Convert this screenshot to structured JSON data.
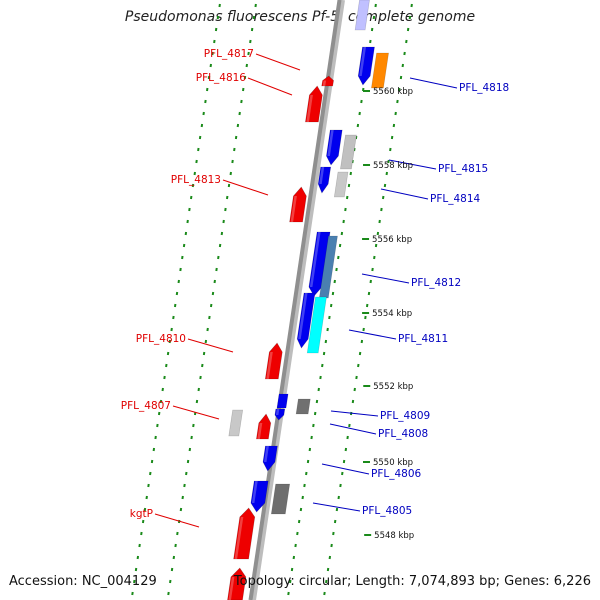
{
  "title": "Pseudomonas fluorescens Pf-5, complete genome",
  "footer": {
    "accession": "Accession: NC_004129",
    "summary": "Topology: circular; Length: 7,074,893 bp; Genes: 6,226"
  },
  "colors": {
    "backbone": "#8f8f8f",
    "ticks": "#1a8a1a",
    "forward_label": "#e00000",
    "reverse_label": "#0000c0"
  },
  "scale_labels": [
    "5560 kbp",
    "5558 kbp",
    "5556 kbp",
    "5554 kbp",
    "5552 kbp",
    "5550 kbp",
    "5548 kbp"
  ],
  "forward_genes": [
    "PFL_4817",
    "PFL_4816",
    "PFL_4813",
    "PFL_4810",
    "PFL_4807",
    "kgtP"
  ],
  "reverse_genes": [
    "PFL_4818",
    "PFL_4815",
    "PFL_4814",
    "PFL_4812",
    "PFL_4811",
    "PFL_4809",
    "PFL_4808",
    "PFL_4806",
    "PFL_4805"
  ]
}
